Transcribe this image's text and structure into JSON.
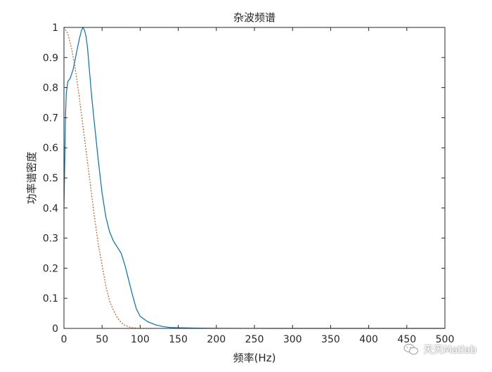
{
  "chart_data": {
    "type": "line",
    "title": "杂波频谱",
    "xlabel": "频率(Hz)",
    "ylabel": "功率谱密度",
    "xlim": [
      0,
      500
    ],
    "ylim": [
      0,
      1
    ],
    "xticks": [
      0,
      50,
      100,
      150,
      200,
      250,
      300,
      350,
      400,
      450,
      500
    ],
    "yticks": [
      0,
      0.1,
      0.2,
      0.3,
      0.4,
      0.5,
      0.6,
      0.7,
      0.8,
      0.9,
      1
    ],
    "grid": false,
    "series": [
      {
        "color": "#0072BD",
        "style": "solid",
        "x": [
          0,
          1,
          2,
          3,
          5,
          8,
          12,
          16,
          20,
          23,
          25,
          27,
          29,
          31,
          33,
          36,
          40,
          45,
          50,
          55,
          60,
          65,
          70,
          75,
          80,
          85,
          90,
          95,
          100,
          110,
          120,
          130,
          140,
          150,
          175,
          200,
          250,
          300,
          350,
          400,
          450,
          500
        ],
        "y": [
          0.4,
          0.55,
          0.7,
          0.78,
          0.82,
          0.83,
          0.86,
          0.91,
          0.96,
          0.99,
          1.0,
          0.99,
          0.97,
          0.93,
          0.87,
          0.78,
          0.68,
          0.56,
          0.45,
          0.37,
          0.32,
          0.29,
          0.27,
          0.25,
          0.21,
          0.16,
          0.11,
          0.065,
          0.04,
          0.022,
          0.012,
          0.006,
          0.003,
          0.002,
          0.0008,
          0.0003,
          0.0001,
          0,
          0,
          0,
          0,
          0
        ]
      },
      {
        "color": "#D95319",
        "style": "dotted",
        "x": [
          0,
          5,
          10,
          15,
          20,
          25,
          30,
          35,
          40,
          45,
          50,
          55,
          60,
          65,
          70,
          75,
          80,
          85,
          90,
          95,
          100,
          110,
          120
        ],
        "y": [
          1.0,
          0.98,
          0.93,
          0.86,
          0.77,
          0.67,
          0.57,
          0.47,
          0.37,
          0.28,
          0.21,
          0.14,
          0.09,
          0.06,
          0.035,
          0.02,
          0.01,
          0.005,
          0.002,
          0.001,
          0,
          0,
          0
        ]
      }
    ]
  },
  "watermark": {
    "icon": "wechat-icon",
    "text": "天天Matlab"
  }
}
